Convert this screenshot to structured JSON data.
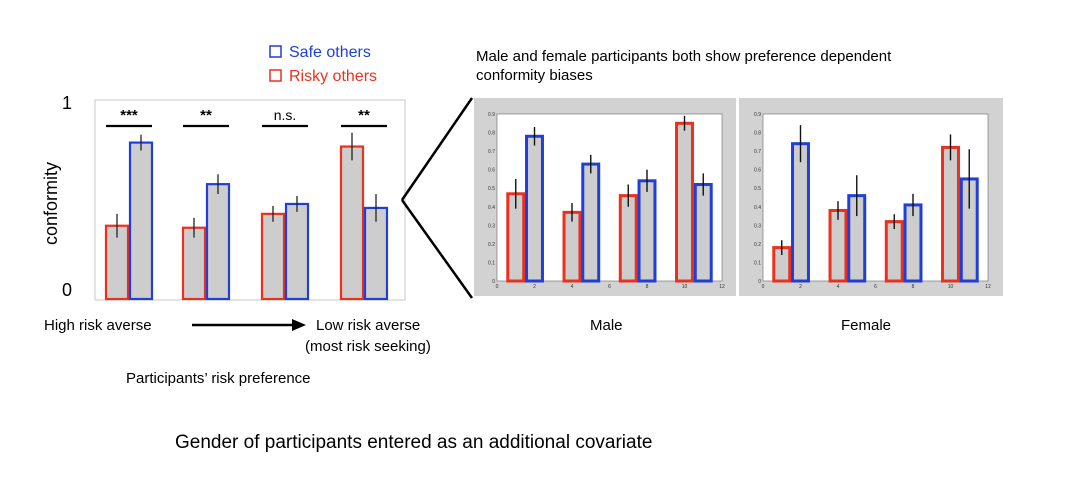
{
  "legend": {
    "safe_label": "Safe others",
    "risky_label": "Risky others",
    "safe_color": "#1f3fd8",
    "risky_color": "#e8321e",
    "bar_fill": "#cdcdcd"
  },
  "left_panel": {
    "y_axis_label": "conformity",
    "y_top_label": "1",
    "y_bottom_label": "0",
    "x_left_label": "High risk averse",
    "x_right_label_1": "Low risk averse",
    "x_right_label_2": "(most risk seeking)",
    "x_axis_title": "Participants’ risk preference"
  },
  "right_panel": {
    "title_line1": "Male and female participants both show preference dependent",
    "title_line2": "conformity biases",
    "male_label": "Male",
    "female_label": "Female"
  },
  "footer": "Gender of participants entered as an additional covariate",
  "chart_data": [
    {
      "type": "bar",
      "ylabel": "conformity",
      "ylim": [
        0,
        1
      ],
      "categories": [
        "High risk averse",
        "",
        "",
        "Low risk averse (most risk seeking)"
      ],
      "series": [
        {
          "name": "Risky others",
          "color": "#e8321e",
          "values": [
            0.37,
            0.36,
            0.43,
            0.77
          ],
          "errors": [
            0.06,
            0.05,
            0.04,
            0.07
          ]
        },
        {
          "name": "Safe others",
          "color": "#1f3fd8",
          "values": [
            0.79,
            0.58,
            0.48,
            0.46
          ],
          "errors": [
            0.04,
            0.05,
            0.04,
            0.07
          ]
        }
      ],
      "significance": [
        "***",
        "**",
        "n.s.",
        "**"
      ]
    },
    {
      "type": "bar",
      "xlabel": "Male",
      "ylim": [
        0,
        0.9
      ],
      "xlim": [
        0,
        12
      ],
      "yticks": [
        "0",
        "0.1",
        "0.2",
        "0.3",
        "0.4",
        "0.5",
        "0.6",
        "0.7",
        "0.8",
        "0.9"
      ],
      "xticks": [
        "0",
        "2",
        "4",
        "6",
        "8",
        "10",
        "12"
      ],
      "series": [
        {
          "name": "Risky others",
          "x": [
            1,
            4,
            7,
            10
          ],
          "values": [
            0.47,
            0.37,
            0.46,
            0.85
          ],
          "errors": [
            0.08,
            0.05,
            0.06,
            0.04
          ]
        },
        {
          "name": "Safe others",
          "x": [
            2,
            5,
            8,
            11
          ],
          "values": [
            0.78,
            0.63,
            0.54,
            0.52
          ],
          "errors": [
            0.05,
            0.05,
            0.06,
            0.06
          ]
        }
      ]
    },
    {
      "type": "bar",
      "xlabel": "Female",
      "ylim": [
        0,
        0.9
      ],
      "xlim": [
        0,
        12
      ],
      "yticks": [
        "0",
        "0.1",
        "0.2",
        "0.3",
        "0.4",
        "0.5",
        "0.6",
        "0.7",
        "0.8",
        "0.9"
      ],
      "xticks": [
        "0",
        "2",
        "4",
        "6",
        "8",
        "10",
        "12"
      ],
      "series": [
        {
          "name": "Risky others",
          "x": [
            1,
            4,
            7,
            10
          ],
          "values": [
            0.18,
            0.38,
            0.32,
            0.72
          ],
          "errors": [
            0.04,
            0.05,
            0.04,
            0.07
          ]
        },
        {
          "name": "Safe others",
          "x": [
            2,
            5,
            8,
            11
          ],
          "values": [
            0.74,
            0.46,
            0.41,
            0.55
          ],
          "errors": [
            0.1,
            0.11,
            0.06,
            0.16
          ]
        }
      ]
    }
  ]
}
